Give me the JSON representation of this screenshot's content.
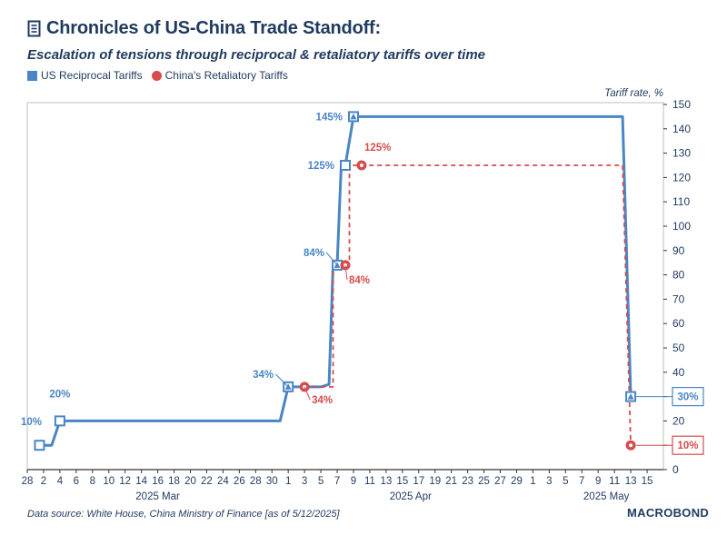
{
  "header": {
    "title": "Chronicles of US-China Trade Standoff:",
    "subtitle": "Escalation of tensions through reciprocal & retaliatory tariffs over time",
    "unit_label": "Tariff rate, %"
  },
  "legend": {
    "us_label": "US Reciprocal Tariffs",
    "china_label": "China's Retaliatory Tariffs"
  },
  "footer": {
    "source": "Data source: White House, China Ministry of Finance [as of 5/12/2025]",
    "brand": "MACROBOND"
  },
  "colors": {
    "us": "#4a86c5",
    "china": "#d64c4c",
    "text": "#1f3a5f",
    "axis": "#333333",
    "frame": "#bfbfbf"
  },
  "chart_data": {
    "type": "line",
    "title": "Chronicles of US-China Trade Standoff:",
    "subtitle": "Escalation of tensions through reciprocal & retaliatory tariffs over time",
    "ylabel": "Tariff rate, %",
    "xlabel": "",
    "ylim": [
      0,
      150
    ],
    "y_ticks": [
      0,
      10,
      20,
      30,
      40,
      50,
      60,
      70,
      80,
      90,
      100,
      110,
      120,
      130,
      140,
      150
    ],
    "x_domain_days": [
      0,
      78
    ],
    "x_ticks": [
      {
        "day": 0,
        "label": "28"
      },
      {
        "day": 2,
        "label": "2"
      },
      {
        "day": 4,
        "label": "4"
      },
      {
        "day": 6,
        "label": "6"
      },
      {
        "day": 8,
        "label": "8"
      },
      {
        "day": 10,
        "label": "10"
      },
      {
        "day": 12,
        "label": "12"
      },
      {
        "day": 14,
        "label": "14"
      },
      {
        "day": 16,
        "label": "16"
      },
      {
        "day": 18,
        "label": "18"
      },
      {
        "day": 20,
        "label": "20"
      },
      {
        "day": 22,
        "label": "22"
      },
      {
        "day": 24,
        "label": "24"
      },
      {
        "day": 26,
        "label": "26"
      },
      {
        "day": 28,
        "label": "28"
      },
      {
        "day": 30,
        "label": "30"
      },
      {
        "day": 32,
        "label": "1"
      },
      {
        "day": 34,
        "label": "3"
      },
      {
        "day": 36,
        "label": "5"
      },
      {
        "day": 38,
        "label": "7"
      },
      {
        "day": 40,
        "label": "9"
      },
      {
        "day": 42,
        "label": "11"
      },
      {
        "day": 44,
        "label": "13"
      },
      {
        "day": 46,
        "label": "15"
      },
      {
        "day": 48,
        "label": "17"
      },
      {
        "day": 50,
        "label": "19"
      },
      {
        "day": 52,
        "label": "21"
      },
      {
        "day": 54,
        "label": "23"
      },
      {
        "day": 56,
        "label": "25"
      },
      {
        "day": 58,
        "label": "27"
      },
      {
        "day": 60,
        "label": "29"
      },
      {
        "day": 62,
        "label": "1"
      },
      {
        "day": 64,
        "label": "3"
      },
      {
        "day": 66,
        "label": "5"
      },
      {
        "day": 68,
        "label": "7"
      },
      {
        "day": 70,
        "label": "9"
      },
      {
        "day": 72,
        "label": "11"
      },
      {
        "day": 74,
        "label": "13"
      },
      {
        "day": 76,
        "label": "15"
      }
    ],
    "month_labels": [
      {
        "day": 16,
        "label": "2025 Mar"
      },
      {
        "day": 47,
        "label": "2025 Apr"
      },
      {
        "day": 71,
        "label": "2025 May"
      }
    ],
    "series": [
      {
        "name": "US Reciprocal Tariffs",
        "style": "solid",
        "points": [
          {
            "day": 1.5,
            "value": 10
          },
          {
            "day": 3,
            "value": 10
          },
          {
            "day": 4,
            "value": 20
          },
          {
            "day": 31,
            "value": 20
          },
          {
            "day": 32,
            "value": 34
          },
          {
            "day": 36,
            "value": 34
          },
          {
            "day": 37,
            "value": 35
          },
          {
            "day": 37.5,
            "value": 84
          },
          {
            "day": 38,
            "value": 84
          },
          {
            "day": 38.5,
            "value": 125
          },
          {
            "day": 39,
            "value": 125
          },
          {
            "day": 40,
            "value": 145
          },
          {
            "day": 73,
            "value": 145
          },
          {
            "day": 74,
            "value": 30
          }
        ],
        "markers": [
          {
            "day": 1.5,
            "value": 10,
            "shape": "square",
            "label": "10%"
          },
          {
            "day": 4,
            "value": 20,
            "shape": "square",
            "label": "20%"
          },
          {
            "day": 32,
            "value": 34,
            "shape": "triangle",
            "label": "34%"
          },
          {
            "day": 38,
            "value": 84,
            "shape": "triangle",
            "label": "84%"
          },
          {
            "day": 39,
            "value": 125,
            "shape": "square",
            "label": "125%"
          },
          {
            "day": 40,
            "value": 145,
            "shape": "triangle",
            "label": "145%"
          },
          {
            "day": 74,
            "value": 30,
            "shape": "triangle",
            "label": "30%"
          }
        ]
      },
      {
        "name": "China's Retaliatory Tariffs",
        "style": "dashed",
        "points": [
          {
            "day": 34,
            "value": 34
          },
          {
            "day": 37.5,
            "value": 34
          },
          {
            "day": 37.5,
            "value": 84
          },
          {
            "day": 39.5,
            "value": 84
          },
          {
            "day": 39.5,
            "value": 125
          },
          {
            "day": 73,
            "value": 125
          },
          {
            "day": 74,
            "value": 10
          }
        ],
        "markers": [
          {
            "day": 34,
            "value": 34,
            "shape": "circle",
            "label": "34%"
          },
          {
            "day": 39,
            "value": 84,
            "shape": "circle",
            "label": "84%"
          },
          {
            "day": 41,
            "value": 125,
            "shape": "circle",
            "label": "125%"
          },
          {
            "day": 74,
            "value": 10,
            "shape": "circle",
            "label": "10%"
          }
        ]
      }
    ],
    "end_labels": [
      {
        "series": "US Reciprocal Tariffs",
        "value": 30,
        "label": "30%"
      },
      {
        "series": "China's Retaliatory Tariffs",
        "value": 10,
        "label": "10%"
      }
    ]
  }
}
